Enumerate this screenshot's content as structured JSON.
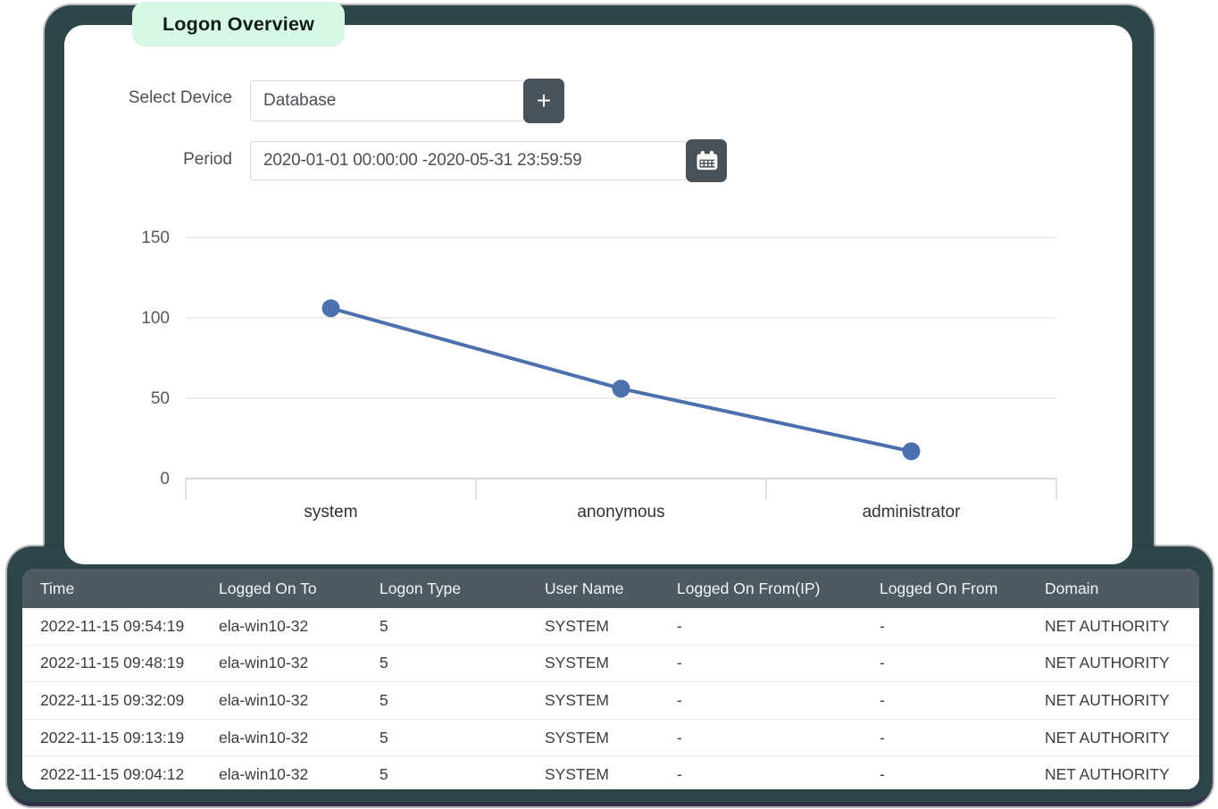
{
  "page": {
    "title_badge": "Logon Overview"
  },
  "filters": {
    "device_label": "Select Device",
    "device_value": "Database",
    "add_button_glyph": "+",
    "add_button_icon": "plus-icon",
    "period_label": "Period",
    "period_value": "2020-01-01 00:00:00 -2020-05-31 23:59:59",
    "period_button_icon": "calendar-icon"
  },
  "chart_data": {
    "type": "line",
    "categories": [
      "system",
      "anonymous",
      "administrator"
    ],
    "values": [
      106,
      56,
      17
    ],
    "title": "",
    "xlabel": "",
    "ylabel": "",
    "ylim": [
      0,
      150
    ],
    "yticks": [
      0,
      50,
      100,
      150
    ],
    "grid": true,
    "legend": "none",
    "line_color": "#4b70ad",
    "marker_color": "#4b70ad"
  },
  "table": {
    "columns": [
      "Time",
      "Logged On To",
      "Logon Type",
      "User Name",
      "Logged On From(IP)",
      "Logged On From",
      "Domain"
    ],
    "rows": [
      [
        "2022-11-15 09:54:19",
        "ela-win10-32",
        "5",
        "SYSTEM",
        "-",
        "-",
        "NET AUTHORITY"
      ],
      [
        "2022-11-15 09:48:19",
        "ela-win10-32",
        "5",
        "SYSTEM",
        "-",
        "-",
        "NET AUTHORITY"
      ],
      [
        "2022-11-15 09:32:09",
        "ela-win10-32",
        "5",
        "SYSTEM",
        "-",
        "-",
        "NET AUTHORITY"
      ],
      [
        "2022-11-15 09:13:19",
        "ela-win10-32",
        "5",
        "SYSTEM",
        "-",
        "-",
        "NET AUTHORITY"
      ],
      [
        "2022-11-15 09:04:12",
        "ela-win10-32",
        "5",
        "SYSTEM",
        "-",
        "-",
        "NET AUTHORITY"
      ]
    ]
  },
  "colors": {
    "badge_bg": "#d7f8e4",
    "panel_bg": "#2e4649",
    "table_header_bg": "#4d5a62",
    "button_bg": "#47525a",
    "line": "#4b70ad",
    "gridline": "#e8e8e8",
    "axis_text": "#56595d"
  }
}
